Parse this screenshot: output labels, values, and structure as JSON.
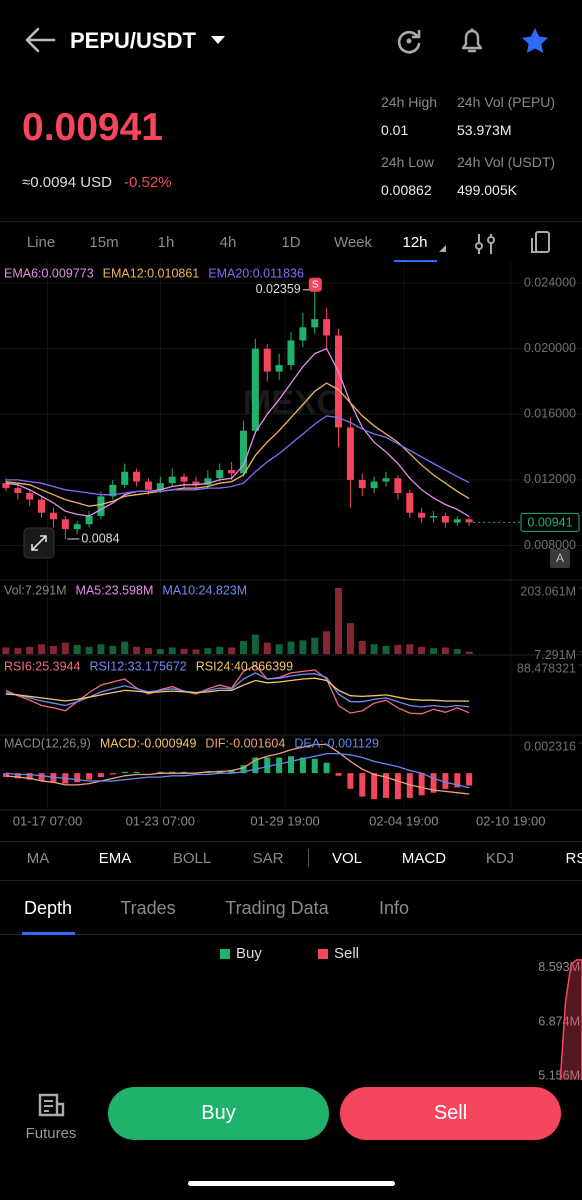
{
  "header": {
    "pair": "PEPU/USDT"
  },
  "ticker": {
    "price": "0.00941",
    "approx": "≈0.0094 USD",
    "change": "-0.52%",
    "stats": [
      {
        "label": "24h High",
        "value": "0.01"
      },
      {
        "label": "24h Vol (PEPU)",
        "value": "53.973M"
      },
      {
        "label": "24h Low",
        "value": "0.00862"
      },
      {
        "label": "24h Vol  (USDT)",
        "value": "499.005K"
      }
    ]
  },
  "intervals": {
    "items": [
      "Line",
      "15m",
      "1h",
      "4h",
      "1D",
      "Week",
      "12h"
    ],
    "active": 6
  },
  "chart_data": [
    {
      "type": "candlestick",
      "watermark": "MEXC",
      "marker": "S",
      "price_button": "A",
      "up_color": "#20b26c",
      "down_color": "#f6465d",
      "candles": {
        "open": [
          0.0118,
          0.0115,
          0.0112,
          0.0108,
          0.01,
          0.0096,
          0.009,
          0.0093,
          0.0098,
          0.011,
          0.0117,
          0.0125,
          0.0119,
          0.0114,
          0.0118,
          0.0122,
          0.0119,
          0.0117,
          0.0121,
          0.0126,
          0.0124,
          0.015,
          0.02,
          0.0186,
          0.019,
          0.0205,
          0.0213,
          0.0218,
          0.0208,
          0.0152,
          0.012,
          0.0115,
          0.0119,
          0.0121,
          0.0112,
          0.01,
          0.0097,
          0.0098,
          0.0094,
          0.0096
        ],
        "high": [
          0.0121,
          0.0117,
          0.0114,
          0.011,
          0.0103,
          0.0098,
          0.0095,
          0.0101,
          0.0113,
          0.012,
          0.013,
          0.0127,
          0.0121,
          0.0122,
          0.0127,
          0.0124,
          0.0122,
          0.0126,
          0.013,
          0.0131,
          0.0156,
          0.0206,
          0.0203,
          0.0197,
          0.021,
          0.0222,
          0.02359,
          0.0225,
          0.0212,
          0.0158,
          0.0124,
          0.0122,
          0.0125,
          0.0123,
          0.0114,
          0.0103,
          0.0101,
          0.01,
          0.0098,
          0.0097
        ],
        "low": [
          0.0113,
          0.0108,
          0.0104,
          0.0097,
          0.0091,
          0.0084,
          0.0087,
          0.0091,
          0.0096,
          0.0108,
          0.0115,
          0.0116,
          0.0111,
          0.0112,
          0.0116,
          0.0115,
          0.0114,
          0.0115,
          0.0119,
          0.012,
          0.0122,
          0.0148,
          0.018,
          0.0181,
          0.0187,
          0.0201,
          0.0209,
          0.02,
          0.014,
          0.0103,
          0.011,
          0.0112,
          0.0116,
          0.0108,
          0.0097,
          0.0094,
          0.0094,
          0.0091,
          0.0092,
          0.0092
        ],
        "close": [
          0.0115,
          0.0112,
          0.0108,
          0.01,
          0.0096,
          0.009,
          0.0093,
          0.0098,
          0.011,
          0.0117,
          0.0125,
          0.0119,
          0.0114,
          0.0118,
          0.0122,
          0.0119,
          0.0117,
          0.0121,
          0.0126,
          0.0124,
          0.015,
          0.02,
          0.0186,
          0.019,
          0.0205,
          0.0213,
          0.0218,
          0.0208,
          0.0152,
          0.012,
          0.0115,
          0.0119,
          0.0121,
          0.0112,
          0.01,
          0.0097,
          0.0098,
          0.0094,
          0.0096,
          0.00941
        ]
      },
      "series": [
        {
          "name": "EMA6:0.009773",
          "color": "#e48ee8",
          "values": [
            0.0118,
            0.0117,
            0.0114,
            0.011,
            0.0106,
            0.0101,
            0.0099,
            0.0098,
            0.0102,
            0.0106,
            0.0111,
            0.0113,
            0.0113,
            0.0114,
            0.0116,
            0.0117,
            0.0117,
            0.0118,
            0.012,
            0.0121,
            0.0129,
            0.0149,
            0.016,
            0.0169,
            0.0179,
            0.0189,
            0.0197,
            0.02,
            0.0186,
            0.0167,
            0.0152,
            0.0143,
            0.0137,
            0.013,
            0.0121,
            0.0114,
            0.0109,
            0.0105,
            0.0102,
            0.009773
          ]
        },
        {
          "name": "EMA12:0.010861",
          "color": "#f0b45a",
          "values": [
            0.0119,
            0.0118,
            0.0117,
            0.0114,
            0.0111,
            0.0108,
            0.0106,
            0.0104,
            0.0105,
            0.0107,
            0.011,
            0.0111,
            0.0112,
            0.0113,
            0.0114,
            0.0115,
            0.0115,
            0.0116,
            0.0118,
            0.0119,
            0.0123,
            0.0135,
            0.0143,
            0.015,
            0.0158,
            0.0166,
            0.0174,
            0.0179,
            0.0175,
            0.0167,
            0.0159,
            0.0153,
            0.0148,
            0.0143,
            0.0136,
            0.0129,
            0.0123,
            0.0118,
            0.0113,
            0.010861
          ]
        },
        {
          "name": "EMA20:0.011836",
          "color": "#7f6ff5",
          "values": [
            0.012,
            0.012,
            0.0119,
            0.0118,
            0.0116,
            0.0114,
            0.0113,
            0.0112,
            0.0111,
            0.0111,
            0.0112,
            0.0113,
            0.0113,
            0.0113,
            0.0114,
            0.0114,
            0.0114,
            0.0115,
            0.0115,
            0.0116,
            0.0118,
            0.0125,
            0.0131,
            0.0136,
            0.0142,
            0.0148,
            0.0154,
            0.0159,
            0.0158,
            0.0155,
            0.0151,
            0.0148,
            0.0146,
            0.0142,
            0.0138,
            0.0134,
            0.013,
            0.0126,
            0.0122,
            0.011836
          ]
        }
      ],
      "ylim": [
        0.0059,
        0.0251
      ],
      "yticks": [
        {
          "value": 0.024,
          "label": "0.024000"
        },
        {
          "value": 0.02,
          "label": "0.020000"
        },
        {
          "value": 0.016,
          "label": "0.016000"
        },
        {
          "value": 0.012,
          "label": "0.012000"
        },
        {
          "value": 0.008,
          "label": "0.008000"
        }
      ],
      "grid": true
    },
    {
      "type": "bar",
      "series": [
        {
          "name": "Vol:7.291M",
          "color": "#8a8a8a",
          "values": [
            20,
            18,
            22,
            30,
            25,
            35,
            28,
            22,
            30,
            25,
            38,
            22,
            18,
            15,
            20,
            16,
            14,
            18,
            22,
            20,
            40,
            60,
            35,
            30,
            38,
            42,
            50,
            70,
            203.061,
            95,
            40,
            30,
            25,
            28,
            30,
            22,
            18,
            20,
            15,
            7.291
          ]
        }
      ],
      "annotations": [
        {
          "text": "MA5:23.598M",
          "color": "#e48ee8"
        },
        {
          "text": "MA10:24.823M",
          "color": "#6f8bf5"
        }
      ],
      "ylim": [
        0,
        203.061
      ],
      "yticks": [
        {
          "value": 203.061,
          "label": "203.061M"
        },
        {
          "value": 7.291,
          "label": "7.291M"
        }
      ]
    },
    {
      "type": "line",
      "series": [
        {
          "name": "RSI6:25.3944",
          "color": "#f26a7e",
          "values": [
            55,
            48,
            42,
            35,
            32,
            28,
            40,
            52,
            62,
            66,
            70,
            58,
            50,
            56,
            60,
            54,
            50,
            57,
            62,
            58,
            80,
            88,
            70,
            72,
            78,
            80,
            82,
            70,
            35,
            25,
            28,
            38,
            42,
            32,
            25,
            24,
            30,
            26,
            32,
            25.3944
          ]
        },
        {
          "name": "RSI12:33.175672",
          "color": "#6f8bf5",
          "values": [
            52,
            49,
            45,
            41,
            38,
            35,
            40,
            46,
            53,
            57,
            61,
            57,
            53,
            55,
            57,
            54,
            52,
            55,
            58,
            57,
            70,
            78,
            70,
            71,
            74,
            76,
            77,
            72,
            50,
            40,
            40,
            43,
            45,
            40,
            35,
            33,
            35,
            33,
            35,
            33.175672
          ]
        },
        {
          "name": "RSI24:40.866399",
          "color": "#f4c56a",
          "values": [
            50,
            49,
            47,
            45,
            43,
            41,
            43,
            46,
            49,
            52,
            55,
            54,
            52,
            53,
            54,
            53,
            52,
            53,
            55,
            55,
            62,
            68,
            65,
            66,
            68,
            70,
            71,
            68,
            55,
            48,
            47,
            48,
            49,
            46,
            43,
            42,
            42,
            41,
            41,
            40.866399
          ]
        }
      ],
      "ylim": [
        0,
        88.478321
      ],
      "yticks": [
        88.478321
      ]
    },
    {
      "type": "macd",
      "title": "MACD(12,26,9)",
      "series": [
        {
          "name": "MACD:-0.000949",
          "color": "#f4c56a",
          "values": [
            -0.0003,
            -0.0004,
            -0.0005,
            -0.0006,
            -0.0007,
            -0.0008,
            -0.0007,
            -0.0005,
            -0.0003,
            -0.0001,
            0.0001,
            0.0001,
            0.0,
            0.0001,
            0.0001,
            0.0001,
            0.0,
            0.0001,
            0.0002,
            0.0002,
            0.0006,
            0.0012,
            0.0012,
            0.0012,
            0.0013,
            0.0012,
            0.0011,
            0.0008,
            -0.0002,
            -0.0012,
            -0.0018,
            -0.002,
            -0.0019,
            -0.002,
            -0.0019,
            -0.0017,
            -0.0015,
            -0.0012,
            -0.0011,
            -0.000949
          ]
        },
        {
          "name": "DIF:-0.001604",
          "color": "#f2a07a",
          "values": [
            -0.0002,
            -0.0003,
            -0.0004,
            -0.0006,
            -0.0007,
            -0.0009,
            -0.0009,
            -0.0008,
            -0.0006,
            -0.0004,
            -0.0002,
            -0.0001,
            -0.0001,
            0.0,
            0.0,
            0.0,
            0.0,
            0.0001,
            0.0001,
            0.0002,
            0.0004,
            0.001,
            0.0013,
            0.0015,
            0.0018,
            0.002,
            0.0022,
            0.0022,
            0.0016,
            0.0009,
            0.0003,
            -0.0001,
            -0.0003,
            -0.0006,
            -0.0009,
            -0.0011,
            -0.0013,
            -0.0014,
            -0.0015,
            -0.001604
          ]
        },
        {
          "name": "DEA:-0.001129",
          "color": "#5f8cf0",
          "values": [
            0.0,
            -0.0001,
            -0.0001,
            -0.0002,
            -0.0003,
            -0.0004,
            -0.0005,
            -0.0006,
            -0.0006,
            -0.0006,
            -0.0005,
            -0.0004,
            -0.0003,
            -0.0003,
            -0.0002,
            -0.0002,
            -0.0001,
            -0.0001,
            0.0,
            0.0,
            0.0001,
            0.0003,
            0.0005,
            0.0007,
            0.0009,
            0.0011,
            0.0013,
            0.0015,
            0.0015,
            0.0014,
            0.0012,
            0.0009,
            0.0007,
            0.0005,
            0.0002,
            0.0,
            -0.0004,
            -0.0007,
            -0.0009,
            -0.001129
          ]
        }
      ],
      "ylim": [
        -0.0026,
        0.002316
      ],
      "yticks": [
        0.002316
      ],
      "xlim": [
        -0.5,
        48.5
      ],
      "xticks": [
        {
          "value": 3.5,
          "label": "01-17 07:00"
        },
        {
          "value": 13,
          "label": "01-23 07:00"
        },
        {
          "value": 23.5,
          "label": "01-29 19:00"
        },
        {
          "value": 33.5,
          "label": "02-04 19:00"
        },
        {
          "value": 42.5,
          "label": "02-10 19:00"
        }
      ]
    },
    {
      "type": "area",
      "categories": [
        null,
        null,
        null,
        null,
        null
      ],
      "series": [
        {
          "name": "Buy",
          "color": "#20b26c",
          "values": [
            null,
            null,
            null,
            null,
            null
          ]
        },
        {
          "name": "Sell",
          "color": "#f6465d",
          "values": [
            4.9,
            7.5,
            8.7,
            8.85,
            8.85
          ]
        }
      ],
      "ylim": [
        5.03,
        9.48
      ],
      "yticks": [
        {
          "value": 8.593,
          "label": "8.593M"
        },
        {
          "value": 6.874,
          "label": "6.874M"
        },
        {
          "value": 5.156,
          "label": "5.156M"
        }
      ]
    }
  ],
  "indicators": {
    "main": [
      "MA",
      "EMA",
      "BOLL",
      "SAR"
    ],
    "sub": [
      "VOL",
      "MACD",
      "KDJ",
      "RSI"
    ],
    "active_main": [
      1
    ],
    "active_sub": [
      0,
      1,
      3
    ]
  },
  "tabs": {
    "items": [
      "Depth",
      "Trades",
      "Trading Data",
      "Info"
    ],
    "active": 0
  },
  "footer": {
    "futures": "Futures",
    "buy": "Buy",
    "sell": "Sell"
  }
}
